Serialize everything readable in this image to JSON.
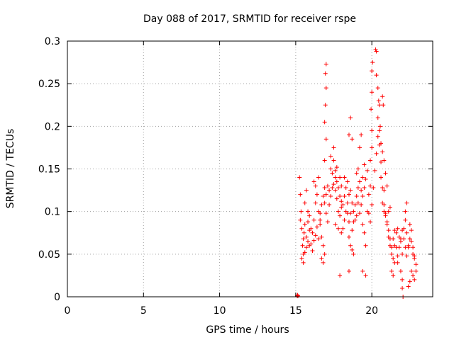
{
  "chart_data": {
    "type": "scatter",
    "title": "Day 088 of 2017, SRMTID for receiver rspe",
    "xlabel": "GPS time / hours",
    "ylabel": "SRMTID / TECUs",
    "xlim": [
      0,
      24
    ],
    "ylim": [
      0,
      0.3
    ],
    "x_ticks": [
      0,
      5,
      10,
      15,
      20
    ],
    "x_tick_labels": [
      "0",
      "5",
      "10",
      "15",
      "20"
    ],
    "y_ticks": [
      0,
      0.05,
      0.1,
      0.15,
      0.2,
      0.25,
      0.3
    ],
    "y_tick_labels": [
      "0",
      "0.05",
      "0.1",
      "0.15",
      "0.2",
      "0.25",
      "0.3"
    ],
    "grid": true,
    "marker": "plus",
    "series": [
      {
        "name": "SRMTID",
        "color": "#ff0000",
        "points": [
          [
            15.1,
            0.001
          ],
          [
            15.12,
            0.002
          ],
          [
            15.15,
            0.001
          ],
          [
            15.25,
            0.14
          ],
          [
            15.3,
            0.12
          ],
          [
            15.35,
            0.1
          ],
          [
            15.3,
            0.09
          ],
          [
            15.4,
            0.08
          ],
          [
            15.45,
            0.06
          ],
          [
            15.5,
            0.05
          ],
          [
            15.4,
            0.045
          ],
          [
            15.5,
            0.04
          ],
          [
            15.55,
            0.075
          ],
          [
            15.6,
            0.085
          ],
          [
            15.7,
            0.07
          ],
          [
            15.8,
            0.065
          ],
          [
            15.9,
            0.06
          ],
          [
            15.6,
            0.11
          ],
          [
            15.7,
            0.125
          ],
          [
            15.8,
            0.1
          ],
          [
            15.9,
            0.095
          ],
          [
            16.0,
            0.08
          ],
          [
            16.1,
            0.075
          ],
          [
            16.2,
            0.09
          ],
          [
            16.3,
            0.11
          ],
          [
            16.4,
            0.12
          ],
          [
            16.5,
            0.1
          ],
          [
            16.6,
            0.09
          ],
          [
            16.2,
            0.135
          ],
          [
            16.3,
            0.13
          ],
          [
            16.5,
            0.14
          ],
          [
            16.6,
            0.085
          ],
          [
            16.7,
            0.07
          ],
          [
            16.8,
            0.06
          ],
          [
            16.9,
            0.05
          ],
          [
            16.7,
            0.045
          ],
          [
            16.8,
            0.04
          ],
          [
            16.9,
            0.11
          ],
          [
            17.0,
            0.12
          ],
          [
            17.1,
            0.13
          ],
          [
            17.2,
            0.125
          ],
          [
            16.9,
            0.16
          ],
          [
            17.0,
            0.185
          ],
          [
            16.9,
            0.205
          ],
          [
            16.95,
            0.225
          ],
          [
            17.0,
            0.245
          ],
          [
            16.95,
            0.262
          ],
          [
            17.0,
            0.273
          ],
          [
            17.3,
            0.15
          ],
          [
            17.4,
            0.145
          ],
          [
            17.5,
            0.16
          ],
          [
            17.6,
            0.14
          ],
          [
            17.3,
            0.165
          ],
          [
            17.5,
            0.175
          ],
          [
            17.6,
            0.125
          ],
          [
            17.7,
            0.115
          ],
          [
            17.8,
            0.1
          ],
          [
            17.9,
            0.095
          ],
          [
            18.0,
            0.105
          ],
          [
            17.7,
            0.135
          ],
          [
            17.9,
            0.14
          ],
          [
            18.0,
            0.13
          ],
          [
            17.6,
            0.085
          ],
          [
            17.8,
            0.08
          ],
          [
            18.0,
            0.075
          ],
          [
            18.1,
            0.08
          ],
          [
            18.2,
            0.09
          ],
          [
            18.3,
            0.1
          ],
          [
            18.4,
            0.11
          ],
          [
            18.5,
            0.12
          ],
          [
            18.6,
            0.125
          ],
          [
            18.2,
            0.14
          ],
          [
            18.4,
            0.135
          ],
          [
            18.5,
            0.07
          ],
          [
            18.6,
            0.06
          ],
          [
            18.7,
            0.055
          ],
          [
            18.8,
            0.05
          ],
          [
            18.5,
            0.03
          ],
          [
            17.9,
            0.025
          ],
          [
            18.6,
            0.21
          ],
          [
            18.5,
            0.19
          ],
          [
            18.7,
            0.185
          ],
          [
            18.7,
            0.11
          ],
          [
            18.8,
            0.1
          ],
          [
            18.9,
            0.09
          ],
          [
            19.0,
            0.095
          ],
          [
            19.1,
            0.11
          ],
          [
            19.0,
            0.145
          ],
          [
            19.1,
            0.15
          ],
          [
            19.2,
            0.135
          ],
          [
            19.3,
            0.125
          ],
          [
            19.4,
            0.14
          ],
          [
            19.5,
            0.155
          ],
          [
            19.2,
            0.175
          ],
          [
            19.3,
            0.19
          ],
          [
            19.4,
            0.085
          ],
          [
            19.5,
            0.075
          ],
          [
            19.6,
            0.06
          ],
          [
            19.4,
            0.03
          ],
          [
            19.6,
            0.025
          ],
          [
            19.7,
            0.1
          ],
          [
            19.8,
            0.12
          ],
          [
            19.9,
            0.13
          ],
          [
            19.9,
            0.16
          ],
          [
            20.0,
            0.175
          ],
          [
            20.0,
            0.195
          ],
          [
            19.95,
            0.22
          ],
          [
            20.0,
            0.24
          ],
          [
            20.0,
            0.265
          ],
          [
            20.05,
            0.275
          ],
          [
            20.25,
            0.29
          ],
          [
            20.3,
            0.288
          ],
          [
            20.3,
            0.26
          ],
          [
            20.4,
            0.245
          ],
          [
            20.45,
            0.23
          ],
          [
            20.5,
            0.225
          ],
          [
            20.4,
            0.21
          ],
          [
            20.5,
            0.195
          ],
          [
            20.6,
            0.18
          ],
          [
            20.55,
            0.2
          ],
          [
            20.7,
            0.235
          ],
          [
            20.75,
            0.225
          ],
          [
            20.7,
            0.17
          ],
          [
            20.8,
            0.16
          ],
          [
            20.9,
            0.145
          ],
          [
            21.0,
            0.13
          ],
          [
            20.6,
            0.14
          ],
          [
            20.8,
            0.125
          ],
          [
            20.7,
            0.11
          ],
          [
            20.8,
            0.1
          ],
          [
            20.9,
            0.095
          ],
          [
            21.0,
            0.085
          ],
          [
            21.1,
            0.1
          ],
          [
            21.2,
            0.105
          ],
          [
            21.1,
            0.07
          ],
          [
            21.2,
            0.06
          ],
          [
            21.3,
            0.05
          ],
          [
            21.4,
            0.045
          ],
          [
            21.5,
            0.04
          ],
          [
            21.3,
            0.03
          ],
          [
            21.4,
            0.025
          ],
          [
            21.5,
            0.06
          ],
          [
            21.6,
            0.075
          ],
          [
            21.7,
            0.08
          ],
          [
            21.8,
            0.07
          ],
          [
            21.9,
            0.065
          ],
          [
            22.0,
            0.05
          ],
          [
            21.7,
            0.04
          ],
          [
            21.9,
            0.03
          ],
          [
            22.0,
            0.02
          ],
          [
            22.0,
            0.01
          ],
          [
            22.05,
            0.0
          ],
          [
            22.1,
            0.08
          ],
          [
            22.2,
            0.09
          ],
          [
            22.3,
            0.075
          ],
          [
            22.4,
            0.06
          ],
          [
            22.2,
            0.1
          ],
          [
            22.3,
            0.11
          ],
          [
            22.5,
            0.085
          ],
          [
            22.6,
            0.065
          ],
          [
            22.7,
            0.05
          ],
          [
            22.8,
            0.045
          ],
          [
            22.6,
            0.03
          ],
          [
            22.7,
            0.025
          ],
          [
            22.8,
            0.02
          ],
          [
            22.9,
            0.03
          ],
          [
            22.4,
            0.012
          ],
          [
            22.5,
            0.018
          ],
          [
            15.5,
            0.068
          ],
          [
            15.6,
            0.052
          ],
          [
            15.7,
            0.058
          ],
          [
            15.8,
            0.088
          ],
          [
            15.9,
            0.078
          ],
          [
            16.0,
            0.062
          ],
          [
            16.1,
            0.054
          ],
          [
            16.2,
            0.066
          ],
          [
            16.3,
            0.072
          ],
          [
            16.4,
            0.082
          ],
          [
            16.5,
            0.068
          ],
          [
            16.6,
            0.098
          ],
          [
            16.7,
            0.108
          ],
          [
            16.8,
            0.118
          ],
          [
            16.9,
            0.128
          ],
          [
            17.0,
            0.098
          ],
          [
            17.1,
            0.088
          ],
          [
            17.2,
            0.108
          ],
          [
            17.3,
            0.118
          ],
          [
            17.4,
            0.128
          ],
          [
            17.5,
            0.132
          ],
          [
            17.6,
            0.148
          ],
          [
            17.7,
            0.152
          ],
          [
            17.8,
            0.128
          ],
          [
            17.9,
            0.118
          ],
          [
            18.0,
            0.112
          ],
          [
            18.1,
            0.108
          ],
          [
            18.2,
            0.118
          ],
          [
            18.3,
            0.128
          ],
          [
            18.4,
            0.098
          ],
          [
            18.5,
            0.088
          ],
          [
            18.6,
            0.098
          ],
          [
            18.7,
            0.078
          ],
          [
            18.8,
            0.088
          ],
          [
            18.9,
            0.108
          ],
          [
            19.0,
            0.118
          ],
          [
            19.1,
            0.128
          ],
          [
            19.2,
            0.098
          ],
          [
            19.3,
            0.108
          ],
          [
            19.4,
            0.118
          ],
          [
            19.5,
            0.128
          ],
          [
            19.6,
            0.138
          ],
          [
            19.7,
            0.148
          ],
          [
            19.8,
            0.098
          ],
          [
            19.9,
            0.088
          ],
          [
            20.0,
            0.108
          ],
          [
            20.1,
            0.128
          ],
          [
            20.2,
            0.148
          ],
          [
            20.3,
            0.168
          ],
          [
            20.4,
            0.188
          ],
          [
            20.5,
            0.178
          ],
          [
            20.6,
            0.158
          ],
          [
            20.7,
            0.128
          ],
          [
            20.8,
            0.108
          ],
          [
            20.9,
            0.098
          ],
          [
            21.0,
            0.088
          ],
          [
            21.1,
            0.078
          ],
          [
            21.2,
            0.068
          ],
          [
            21.3,
            0.058
          ],
          [
            21.4,
            0.068
          ],
          [
            21.5,
            0.078
          ],
          [
            21.6,
            0.058
          ],
          [
            21.7,
            0.048
          ],
          [
            21.8,
            0.058
          ],
          [
            21.9,
            0.068
          ],
          [
            22.0,
            0.078
          ],
          [
            22.1,
            0.068
          ],
          [
            22.2,
            0.058
          ],
          [
            22.3,
            0.048
          ],
          [
            22.4,
            0.058
          ],
          [
            22.5,
            0.068
          ],
          [
            22.6,
            0.078
          ],
          [
            22.7,
            0.058
          ],
          [
            22.8,
            0.048
          ],
          [
            22.9,
            0.038
          ]
        ]
      }
    ]
  }
}
